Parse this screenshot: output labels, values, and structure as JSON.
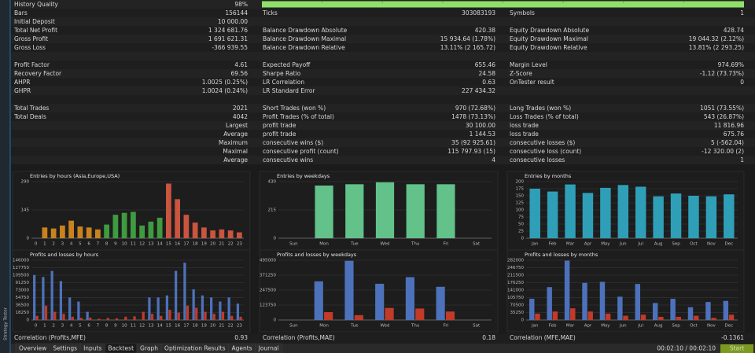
{
  "stats": {
    "rows": [
      [
        "History Quality",
        "98%"
      ],
      [
        "Bars",
        "156144",
        "Ticks",
        "303083193",
        "Symbols",
        "1"
      ],
      [
        "Initial Deposit",
        "10 000.00"
      ],
      [
        "Total Net Profit",
        "1 324 681.76",
        "Balance Drawdown Absolute",
        "420.38",
        "Equity Drawdown Absolute",
        "428.74"
      ],
      [
        "Gross Profit",
        "1 691 621.31",
        "Balance Drawdown Maximal",
        "15 934.64 (1.78%)",
        "Equity Drawdown Maximal",
        "19 044.32 (2.12%)"
      ],
      [
        "Gross Loss",
        "-366 939.55",
        "Balance Drawdown Relative",
        "13.11% (2 165.72)",
        "Equity Drawdown Relative",
        "13.81% (2 293.25)"
      ],
      [],
      [
        "Profit Factor",
        "4.61",
        "Expected Payoff",
        "655.46",
        "Margin Level",
        "974.69%"
      ],
      [
        "Recovery Factor",
        "69.56",
        "Sharpe Ratio",
        "24.58",
        "Z-Score",
        "-1.12 (73.73%)"
      ],
      [
        "AHPR",
        "1.0025 (0.25%)",
        "LR Correlation",
        "0.63",
        "OnTester result",
        "0"
      ],
      [
        "GHPR",
        "1.0024 (0.24%)",
        "LR Standard Error",
        "227 434.32"
      ],
      [],
      [
        "Total Trades",
        "2021",
        "Short Trades (won %)",
        "970 (72.68%)",
        "Long Trades (won %)",
        "1051 (73.55%)"
      ],
      [
        "Total Deals",
        "4042",
        "Profit Trades (% of total)",
        "1478 (73.13%)",
        "Loss Trades (% of total)",
        "543 (26.87%)"
      ],
      [
        "Largest",
        null,
        "profit trade",
        "30 100.00",
        "loss trade",
        "11 816.96"
      ],
      [
        "Average",
        null,
        "profit trade",
        "1 144.53",
        "loss trade",
        "675.76"
      ],
      [
        "Maximum",
        null,
        "consecutive wins ($)",
        "35 (92 925.61)",
        "consecutive losses ($)",
        "5 (-562.04)"
      ],
      [
        "Maximal",
        null,
        "consecutive profit (count)",
        "115 797.93 (15)",
        "consecutive loss (count)",
        "-12 320.00 (2)"
      ],
      [
        "Average",
        null,
        "consecutive wins",
        "4",
        "consecutive losses",
        "1"
      ]
    ]
  },
  "chart_data": [
    {
      "type": "bar",
      "title": "Entries by hours (Asia,Europe,USA)",
      "categories": [
        "0",
        "1",
        "2",
        "3",
        "4",
        "5",
        "6",
        "7",
        "8",
        "9",
        "10",
        "11",
        "12",
        "13",
        "14",
        "15",
        "16",
        "17",
        "18",
        "19",
        "20",
        "21",
        "22",
        "23"
      ],
      "values": [
        0,
        55,
        50,
        65,
        90,
        60,
        55,
        45,
        70,
        120,
        130,
        135,
        65,
        85,
        105,
        280,
        200,
        120,
        80,
        55,
        40,
        45,
        40,
        30
      ],
      "colors": [
        "#c8821e",
        "#c8821e",
        "#c8821e",
        "#c8821e",
        "#c8821e",
        "#c8821e",
        "#c8821e",
        "#c8821e",
        "#3f9b3f",
        "#3f9b3f",
        "#3f9b3f",
        "#3f9b3f",
        "#3f9b3f",
        "#3f9b3f",
        "#3f9b3f",
        "#c9553f",
        "#c9553f",
        "#c9553f",
        "#c9553f",
        "#c9553f",
        "#c9553f",
        "#c9553f",
        "#c9553f",
        "#c9553f"
      ],
      "ylim": [
        0,
        290
      ],
      "yticks": [
        0,
        145,
        290
      ],
      "grid": true
    },
    {
      "type": "bar",
      "title": "Entries by weekdays",
      "categories": [
        "Sun",
        "Mon",
        "Tue",
        "Wed",
        "Thu",
        "Fri",
        "Sat"
      ],
      "values": [
        0,
        400,
        410,
        425,
        410,
        410,
        0
      ],
      "color": "#62c28a",
      "ylim": [
        0,
        430
      ],
      "yticks": [
        0,
        215,
        430
      ],
      "grid": true
    },
    {
      "type": "bar",
      "title": "Entries by months",
      "categories": [
        "Jan",
        "Feb",
        "Mar",
        "Apr",
        "May",
        "Jun",
        "Jul",
        "Aug",
        "Sep",
        "Oct",
        "Nov",
        "Dec"
      ],
      "values": [
        175,
        165,
        190,
        160,
        178,
        188,
        182,
        148,
        158,
        150,
        148,
        155
      ],
      "color": "#2f9fb8",
      "ylim": [
        0,
        200
      ],
      "yticks": [
        0,
        25,
        50,
        75,
        100,
        125,
        150,
        175,
        200
      ],
      "grid": true
    },
    {
      "type": "bar",
      "title": "Profits and losses by hours",
      "categories": [
        "0",
        "1",
        "2",
        "3",
        "4",
        "5",
        "6",
        "7",
        "8",
        "9",
        "10",
        "11",
        "12",
        "13",
        "14",
        "15",
        "16",
        "17",
        "18",
        "19",
        "20",
        "21",
        "22",
        "23"
      ],
      "series": [
        {
          "color": "#4d72bb",
          "values": [
            110000,
            105000,
            120000,
            95000,
            55000,
            45000,
            20000,
            0,
            0,
            0,
            0,
            0,
            0,
            55000,
            55000,
            60000,
            120000,
            140000,
            75000,
            60000,
            55000,
            45000,
            55000,
            40000
          ]
        },
        {
          "color": "#c23a28",
          "values": [
            10000,
            35000,
            20000,
            15000,
            8000,
            5000,
            6000,
            3000,
            5000,
            4000,
            8000,
            9000,
            20000,
            15000,
            10000,
            25000,
            18000,
            35000,
            30000,
            20000,
            15000,
            20000,
            10000,
            8000
          ]
        }
      ],
      "ylim": [
        0,
        146000
      ],
      "yticks": [
        0,
        18250,
        36500,
        54750,
        73000,
        91250,
        109500,
        127750,
        146000
      ],
      "grid": true
    },
    {
      "type": "bar",
      "title": "Profits and losses by weekdays",
      "categories": [
        "Sun",
        "Mon",
        "Tue",
        "Wed",
        "Thu",
        "Fri",
        "Sat"
      ],
      "series": [
        {
          "color": "#4d72bb",
          "values": [
            0,
            320000,
            490000,
            300000,
            355000,
            275000,
            0
          ]
        },
        {
          "color": "#c23a28",
          "values": [
            0,
            65000,
            40000,
            100000,
            95000,
            70000,
            0
          ]
        }
      ],
      "ylim": [
        0,
        495000
      ],
      "yticks": [
        0,
        123750,
        247500,
        371250,
        495000
      ],
      "grid": true
    },
    {
      "type": "bar",
      "title": "Profits and losses by months",
      "categories": [
        "Jan",
        "Feb",
        "Mar",
        "Apr",
        "May",
        "Jun",
        "Jul",
        "Aug",
        "Sep",
        "Oct",
        "Nov",
        "Dec"
      ],
      "series": [
        {
          "color": "#4d72bb",
          "values": [
            100000,
            155000,
            280000,
            175000,
            180000,
            110000,
            170000,
            80000,
            100000,
            60000,
            85000,
            90000
          ]
        },
        {
          "color": "#c23a28",
          "values": [
            30000,
            40000,
            55000,
            40000,
            30000,
            20000,
            25000,
            15000,
            15000,
            20000,
            10000,
            25000
          ]
        }
      ],
      "ylim": [
        0,
        282000
      ],
      "yticks": [
        0,
        35250,
        70500,
        105750,
        141000,
        176250,
        211500,
        246750,
        282000
      ],
      "grid": true
    }
  ],
  "footer": {
    "correlations": [
      "Correlation (Profits,MFE)",
      "0.93",
      "Correlation (Profits,MAE)",
      "0.18",
      "Correlation (MFE,MAE)",
      "-0.1361"
    ]
  },
  "side_label": "Strategy Tester",
  "tabs": [
    "Overview",
    "Settings",
    "Inputs",
    "Backtest",
    "Graph",
    "Optimization Results",
    "Agents",
    "Journal"
  ],
  "active_tab": 3,
  "timer": "00:02:10 / 00:02:10",
  "start_button": "Start"
}
